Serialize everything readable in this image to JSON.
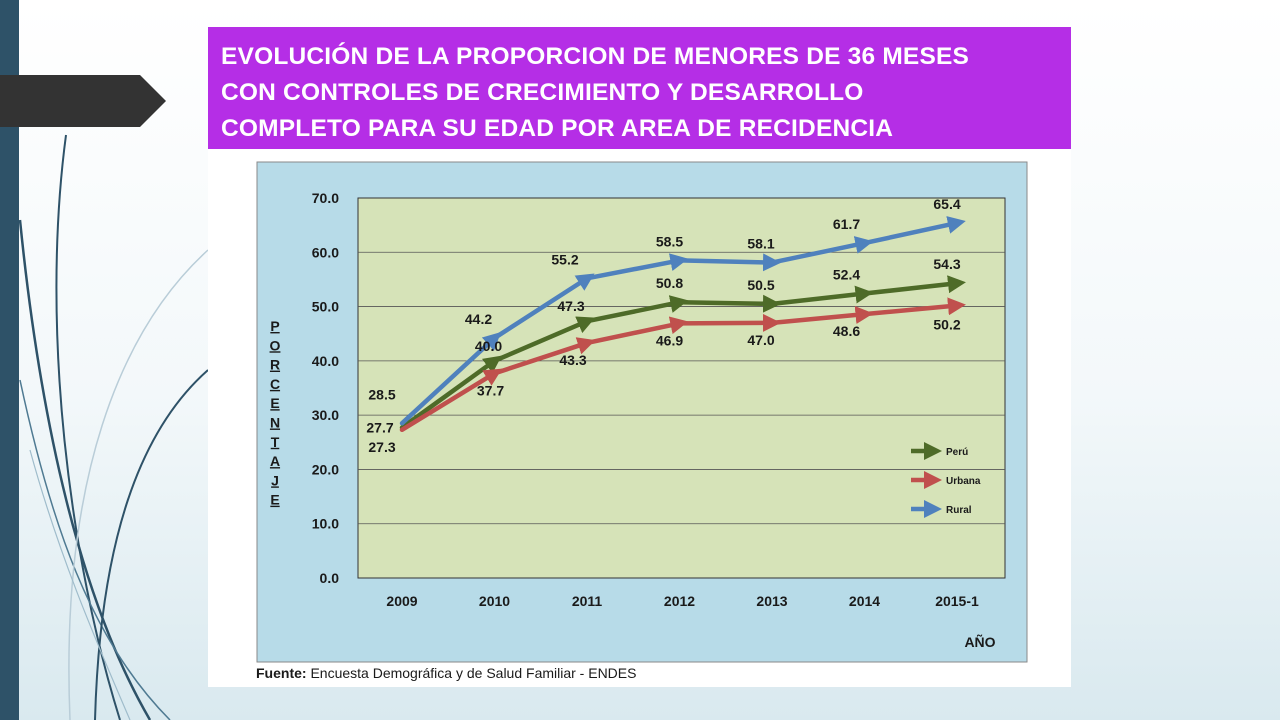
{
  "title": {
    "lines": [
      "EVOLUCIÓN DE LA PROPORCION DE MENORES DE 36 MESES",
      "CON CONTROLES DE CRECIMIENTO Y DESARROLLO",
      "COMPLETO PARA SU EDAD POR AREA DE RECIDENCIA"
    ]
  },
  "source": {
    "label": "Fuente:",
    "text": " Encuesta Demográfica y de Salud Familiar - ENDES"
  },
  "colors": {
    "title_bg": "#b52ee6",
    "plot_bg": "#d6e3b8",
    "frame_bg": "#b7dbe8",
    "peru": "#4e6b28",
    "urbana": "#c0504d",
    "rural": "#4f81bd"
  },
  "chart_data": {
    "type": "line",
    "title": "",
    "xlabel": "AÑO",
    "ylabel": "PORCENTAJE",
    "categories": [
      "2009",
      "2010",
      "2011",
      "2012",
      "2013",
      "2014",
      "2015-1"
    ],
    "ylim": [
      0,
      70
    ],
    "yticks": [
      "0.0",
      "10.0",
      "20.0",
      "30.0",
      "40.0",
      "50.0",
      "60.0",
      "70.0"
    ],
    "grid": true,
    "legend_position": "bottom-right",
    "series": [
      {
        "name": "Perú",
        "color": "#4e6b28",
        "values": [
          27.7,
          40.0,
          47.3,
          50.8,
          50.5,
          52.4,
          54.3
        ],
        "labels": [
          "27.7",
          "40.0",
          "47.3",
          "50.8",
          "50.5",
          "52.4",
          "54.3"
        ]
      },
      {
        "name": "Urbana",
        "color": "#c0504d",
        "values": [
          27.3,
          37.7,
          43.3,
          46.9,
          47.0,
          48.6,
          50.2
        ],
        "labels": [
          "27.3",
          "37.7",
          "43.3",
          "46.9",
          "47.0",
          "48.6",
          "50.2"
        ]
      },
      {
        "name": "Rural",
        "color": "#4f81bd",
        "values": [
          28.5,
          44.2,
          55.2,
          58.5,
          58.1,
          61.7,
          65.4
        ],
        "labels": [
          "28.5",
          "44.2",
          "55.2",
          "58.5",
          "58.1",
          "61.7",
          "65.4"
        ]
      }
    ]
  }
}
